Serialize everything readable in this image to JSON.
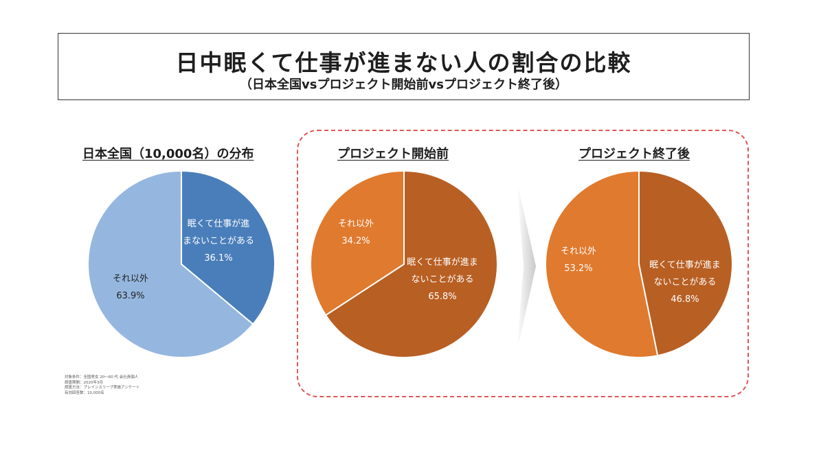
{
  "header": {
    "title": "日中眠くて仕事が進まない人の割合の比較",
    "subtitle": "（日本全国vsプロジェクト開始前vsプロジェクト終了後）"
  },
  "chart_data": [
    {
      "type": "pie",
      "title": "日本全国（10,000名）の分布",
      "slices": [
        {
          "label_line1": "眠くて仕事が進",
          "label_line2": "まないことがある",
          "value_text": "36.1%",
          "value": 36.1,
          "color": "#4a7ebb"
        },
        {
          "label_line1": "それ以外",
          "label_line2": "",
          "value_text": "63.9%",
          "value": 63.9,
          "color": "#95b7df"
        }
      ]
    },
    {
      "type": "pie",
      "title": "プロジェクト開始前",
      "slices": [
        {
          "label_line1": "眠くて仕事が進ま",
          "label_line2": "ないことがある",
          "value_text": "65.8%",
          "value": 65.8,
          "color": "#b85f23"
        },
        {
          "label_line1": "それ以外",
          "label_line2": "",
          "value_text": "34.2%",
          "value": 34.2,
          "color": "#e07a2e"
        }
      ]
    },
    {
      "type": "pie",
      "title": "プロジェクト終了後",
      "slices": [
        {
          "label_line1": "眠くて仕事が進ま",
          "label_line2": "ないことがある",
          "value_text": "46.8%",
          "value": 46.8,
          "color": "#b85f23"
        },
        {
          "label_line1": "それ以外",
          "label_line2": "",
          "value_text": "53.2%",
          "value": 53.2,
          "color": "#e07a2e"
        }
      ]
    }
  ],
  "footnote": {
    "line1": "対象条件：全国男女 20～60 代 会社員個人",
    "line2": "調査期間：2020年3月",
    "line3": "調査方法：ブレインスリープ実施アンケート",
    "line4": "有効回答数：10,000名"
  }
}
